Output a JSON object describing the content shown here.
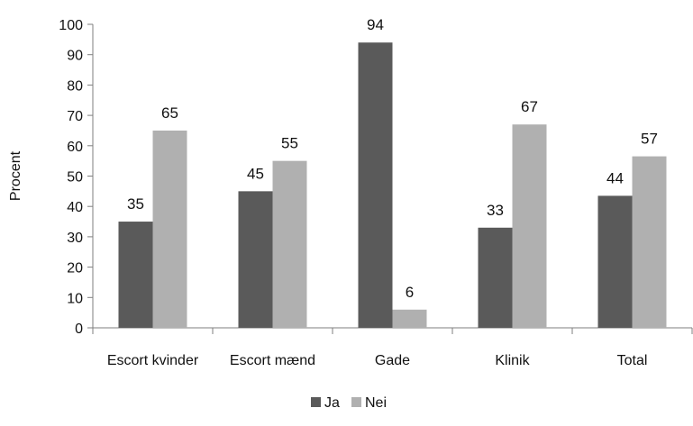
{
  "chart_data": {
    "type": "bar",
    "categories": [
      "Escort kvinder",
      "Escort mænd",
      "Gade",
      "Klinik",
      "Total"
    ],
    "series": [
      {
        "name": "Ja",
        "values": [
          35,
          45,
          94,
          33,
          43.5
        ],
        "labels": [
          "35",
          "45",
          "94",
          "33",
          "44"
        ],
        "color": "#5a5a5a"
      },
      {
        "name": "Nei",
        "values": [
          65,
          55,
          6,
          67,
          56.5
        ],
        "labels": [
          "65",
          "55",
          "6",
          "67",
          "57"
        ],
        "color": "#b0b0b0"
      }
    ],
    "title": "",
    "xlabel": "",
    "ylabel": "Procent",
    "ylim": [
      0,
      100
    ],
    "yticks": [
      0,
      10,
      20,
      30,
      40,
      50,
      60,
      70,
      80,
      90,
      100
    ],
    "grid": false,
    "legend_position": "bottom"
  }
}
